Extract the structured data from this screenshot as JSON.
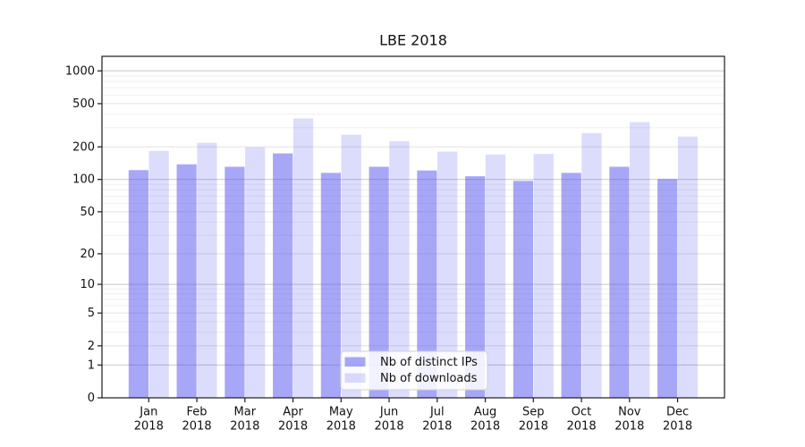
{
  "title": "LBE 2018",
  "colors": {
    "bar_base": "#5050f0",
    "bar_ips": "rgba(80,80,240,0.5)",
    "bar_downloads": "rgba(80,80,240,0.2)",
    "grid_major": "#c8c8c8",
    "grid_minor": "#e0e0e0",
    "grid_micro": "#efefef",
    "spine": "#1a1a1a",
    "legend_bg": "rgba(255,255,255,0.85)",
    "legend_border": "#d2d2d2"
  },
  "chart_data": {
    "type": "bar",
    "title": "LBE 2018",
    "xlabel": "",
    "ylabel": "",
    "y_scale": "symlog (y ~ ln(1+v))",
    "categories": [
      "Jan 2018",
      "Feb 2018",
      "Mar 2018",
      "Apr 2018",
      "May 2018",
      "Jun 2018",
      "Jul 2018",
      "Aug 2018",
      "Sep 2018",
      "Oct 2018",
      "Nov 2018",
      "Dec 2018"
    ],
    "series": [
      {
        "name": "Nb of distinct IPs",
        "values": [
          122,
          138,
          131,
          174,
          115,
          131,
          121,
          107,
          97,
          115,
          131,
          101
        ]
      },
      {
        "name": "Nb of downloads",
        "values": [
          184,
          218,
          198,
          365,
          259,
          225,
          181,
          170,
          172,
          268,
          338,
          249
        ]
      }
    ],
    "yticks": [
      0,
      1,
      2,
      5,
      10,
      20,
      50,
      100,
      200,
      500,
      1000
    ],
    "ylim": [
      0,
      1360
    ],
    "grid": true,
    "legend_position": "bottom-center"
  }
}
